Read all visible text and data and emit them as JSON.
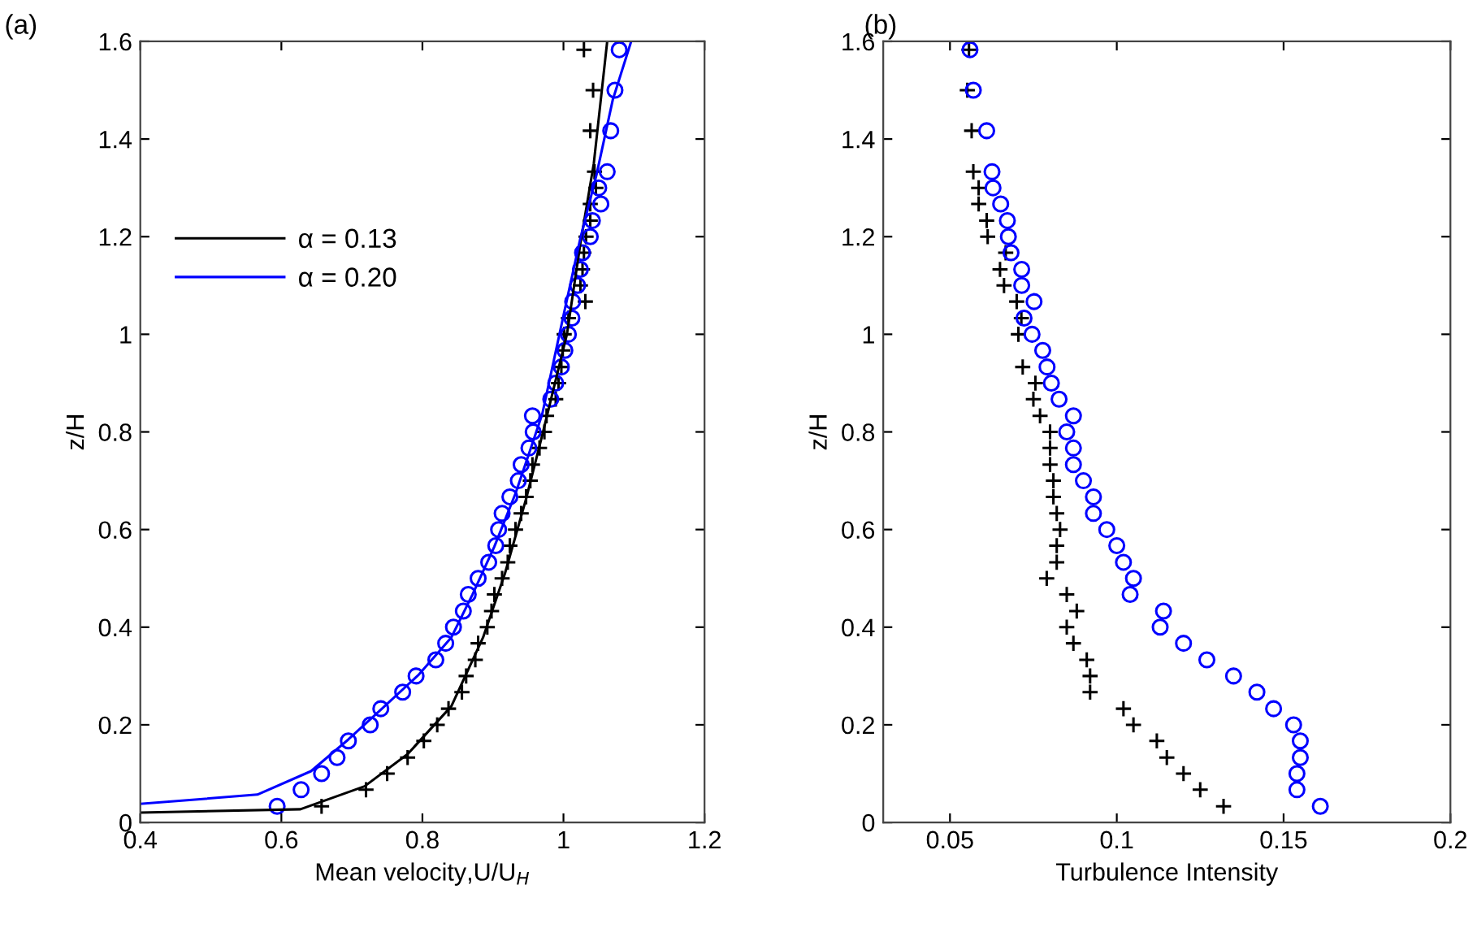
{
  "chart_data": [
    {
      "type": "line",
      "title": "(a)",
      "xlabel": "Mean velocity,U/U$_{H}$",
      "ylabel": "z/H",
      "xlim": [
        0.4,
        1.2
      ],
      "xticks": [
        0.4,
        0.6,
        0.8,
        1,
        1.2
      ],
      "ylim": [
        0,
        1.6
      ],
      "yticks": [
        0,
        0.2,
        0.4,
        0.6,
        0.8,
        1,
        1.2,
        1.4,
        1.6
      ],
      "legend": "left",
      "grid": false,
      "series": [
        {
          "name": "α = 0.13",
          "color": "#000000",
          "marker": "none",
          "x": [
            0.4,
            0.627,
            0.718,
            0.779,
            0.841,
            0.886,
            0.917,
            0.947,
            0.97,
            1.005,
            1.024,
            1.043,
            1.062
          ],
          "values": [
            0.02,
            0.027,
            0.074,
            0.14,
            0.238,
            0.379,
            0.51,
            0.663,
            0.794,
            1.001,
            1.186,
            1.35,
            1.6
          ]
        },
        {
          "name": "α = 0.20",
          "color": "#0000ff",
          "marker": "none",
          "x": [
            0.4,
            0.566,
            0.642,
            0.695,
            0.741,
            0.795,
            0.841,
            0.871,
            0.902,
            0.932,
            0.955,
            0.97,
            1.001,
            1.024,
            1.047,
            1.07,
            1.096
          ],
          "values": [
            0.038,
            0.057,
            0.105,
            0.17,
            0.231,
            0.303,
            0.379,
            0.467,
            0.565,
            0.674,
            0.772,
            0.837,
            1.045,
            1.197,
            1.328,
            1.481,
            1.6
          ]
        },
        {
          "color": "#000000",
          "type": "scatter",
          "marker": "cross",
          "x": [
            0.657,
            0.72,
            0.75,
            0.779,
            0.802,
            0.821,
            0.837,
            0.856,
            0.862,
            0.875,
            0.879,
            0.892,
            0.898,
            0.902,
            0.913,
            0.921,
            0.924,
            0.932,
            0.94,
            0.947,
            0.953,
            0.956,
            0.966,
            0.973,
            0.976,
            0.989,
            0.993,
            0.997,
            0.999,
            1.001,
            1.007,
            1.031,
            1.024,
            1.027,
            1.029,
            1.032,
            1.038,
            1.038,
            1.046,
            1.044,
            1.038,
            1.042,
            1.029
          ],
          "values": [
            0.033,
            0.067,
            0.1,
            0.133,
            0.167,
            0.2,
            0.233,
            0.267,
            0.3,
            0.333,
            0.367,
            0.4,
            0.433,
            0.467,
            0.5,
            0.533,
            0.567,
            0.6,
            0.633,
            0.667,
            0.7,
            0.733,
            0.767,
            0.8,
            0.833,
            0.867,
            0.9,
            0.933,
            0.967,
            1.0,
            1.033,
            1.067,
            1.1,
            1.133,
            1.167,
            1.2,
            1.233,
            1.267,
            1.3,
            1.333,
            1.417,
            1.5,
            1.583
          ]
        },
        {
          "color": "#0000ff",
          "type": "scatter",
          "marker": "circle",
          "x": [
            0.594,
            0.628,
            0.657,
            0.679,
            0.695,
            0.726,
            0.741,
            0.772,
            0.791,
            0.819,
            0.833,
            0.844,
            0.858,
            0.865,
            0.879,
            0.894,
            0.904,
            0.908,
            0.913,
            0.924,
            0.936,
            0.94,
            0.951,
            0.957,
            0.956,
            0.982,
            0.989,
            0.997,
            1.002,
            1.007,
            1.012,
            1.013,
            1.02,
            1.024,
            1.027,
            1.038,
            1.041,
            1.053,
            1.05,
            1.062,
            1.067,
            1.073,
            1.079
          ],
          "values": [
            0.033,
            0.067,
            0.1,
            0.133,
            0.167,
            0.2,
            0.233,
            0.267,
            0.3,
            0.333,
            0.367,
            0.4,
            0.433,
            0.467,
            0.5,
            0.533,
            0.567,
            0.6,
            0.633,
            0.667,
            0.7,
            0.733,
            0.767,
            0.8,
            0.833,
            0.867,
            0.9,
            0.933,
            0.967,
            1.0,
            1.033,
            1.067,
            1.1,
            1.133,
            1.167,
            1.2,
            1.233,
            1.267,
            1.3,
            1.333,
            1.417,
            1.5,
            1.583
          ]
        }
      ]
    },
    {
      "type": "scatter",
      "title": "(b)",
      "xlabel": "Turbulence Intensity",
      "ylabel": "z/H",
      "xlim": [
        0.03,
        0.2
      ],
      "xticks": [
        0.05,
        0.1,
        0.15,
        0.2
      ],
      "ylim": [
        0,
        1.6
      ],
      "yticks": [
        0,
        0.2,
        0.4,
        0.6,
        0.8,
        1,
        1.2,
        1.4,
        1.6
      ],
      "grid": false,
      "series": [
        {
          "color": "#000000",
          "marker": "cross",
          "x": [
            0.132,
            0.125,
            0.12,
            0.115,
            0.112,
            0.105,
            0.102,
            0.092,
            0.092,
            0.091,
            0.087,
            0.085,
            0.088,
            0.085,
            0.079,
            0.082,
            0.082,
            0.083,
            0.082,
            0.081,
            0.081,
            0.08,
            0.08,
            0.08,
            0.077,
            0.075,
            0.0756,
            0.0718,
            0.0705,
            0.0714,
            0.07,
            0.0662,
            0.065,
            0.0667,
            0.0613,
            0.061,
            0.0586,
            0.0586,
            0.057,
            0.0565,
            0.0552,
            0.0557
          ],
          "values": [
            0.033,
            0.067,
            0.1,
            0.133,
            0.167,
            0.2,
            0.233,
            0.267,
            0.3,
            0.333,
            0.367,
            0.4,
            0.433,
            0.467,
            0.5,
            0.533,
            0.567,
            0.6,
            0.633,
            0.667,
            0.7,
            0.733,
            0.767,
            0.8,
            0.833,
            0.867,
            0.9,
            0.933,
            1.0,
            1.033,
            1.067,
            1.1,
            1.133,
            1.167,
            1.2,
            1.233,
            1.267,
            1.3,
            1.333,
            1.417,
            1.5,
            1.583
          ]
        },
        {
          "color": "#0000ff",
          "marker": "circle",
          "x": [
            0.161,
            0.154,
            0.154,
            0.155,
            0.155,
            0.153,
            0.147,
            0.142,
            0.135,
            0.127,
            0.12,
            0.113,
            0.114,
            0.104,
            0.105,
            0.102,
            0.1,
            0.097,
            0.093,
            0.093,
            0.09,
            0.087,
            0.087,
            0.085,
            0.087,
            0.0827,
            0.0804,
            0.0791,
            0.0778,
            0.0746,
            0.0722,
            0.0752,
            0.0715,
            0.0715,
            0.0683,
            0.0675,
            0.0672,
            0.0652,
            0.0629,
            0.0626,
            0.061,
            0.057,
            0.056
          ],
          "values": [
            0.033,
            0.067,
            0.1,
            0.133,
            0.167,
            0.2,
            0.233,
            0.267,
            0.3,
            0.333,
            0.367,
            0.4,
            0.433,
            0.467,
            0.5,
            0.533,
            0.567,
            0.6,
            0.633,
            0.667,
            0.7,
            0.733,
            0.767,
            0.8,
            0.833,
            0.867,
            0.9,
            0.933,
            0.967,
            1.0,
            1.033,
            1.067,
            1.1,
            1.133,
            1.167,
            1.2,
            1.233,
            1.267,
            1.3,
            1.333,
            1.417,
            1.5,
            1.583
          ]
        }
      ]
    }
  ]
}
